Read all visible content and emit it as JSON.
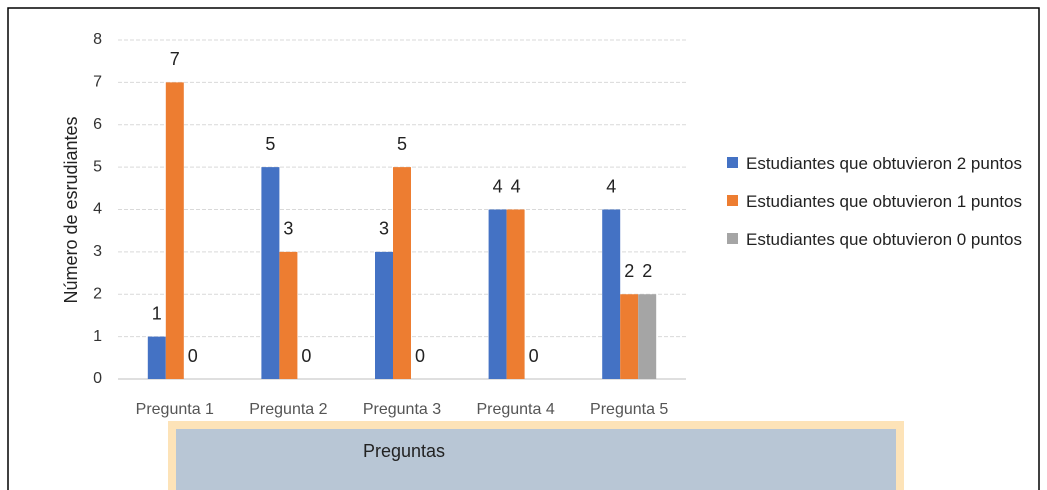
{
  "chart_data": {
    "type": "bar",
    "categories": [
      "Pregunta 1",
      "Pregunta 2",
      "Pregunta 3",
      "Pregunta 4",
      "Pregunta 5"
    ],
    "series": [
      {
        "name": "Estudiantes que obtuvieron 2 puntos",
        "color": "#4472c4",
        "values": [
          1,
          5,
          3,
          4,
          4
        ]
      },
      {
        "name": "Estudiantes que obtuvieron 1 puntos",
        "color": "#ed7d31",
        "values": [
          7,
          3,
          5,
          4,
          2
        ]
      },
      {
        "name": "Estudiantes que obtuvieron 0 puntos",
        "color": "#a5a5a5",
        "values": [
          0,
          0,
          0,
          0,
          2
        ]
      }
    ],
    "ylabel": "Número de esrudiantes",
    "xlabel": "Preguntas",
    "ylim": [
      0,
      8
    ],
    "yticks": [
      0,
      1,
      2,
      3,
      4,
      5,
      6,
      7,
      8
    ],
    "grid": true,
    "legend": "right"
  }
}
